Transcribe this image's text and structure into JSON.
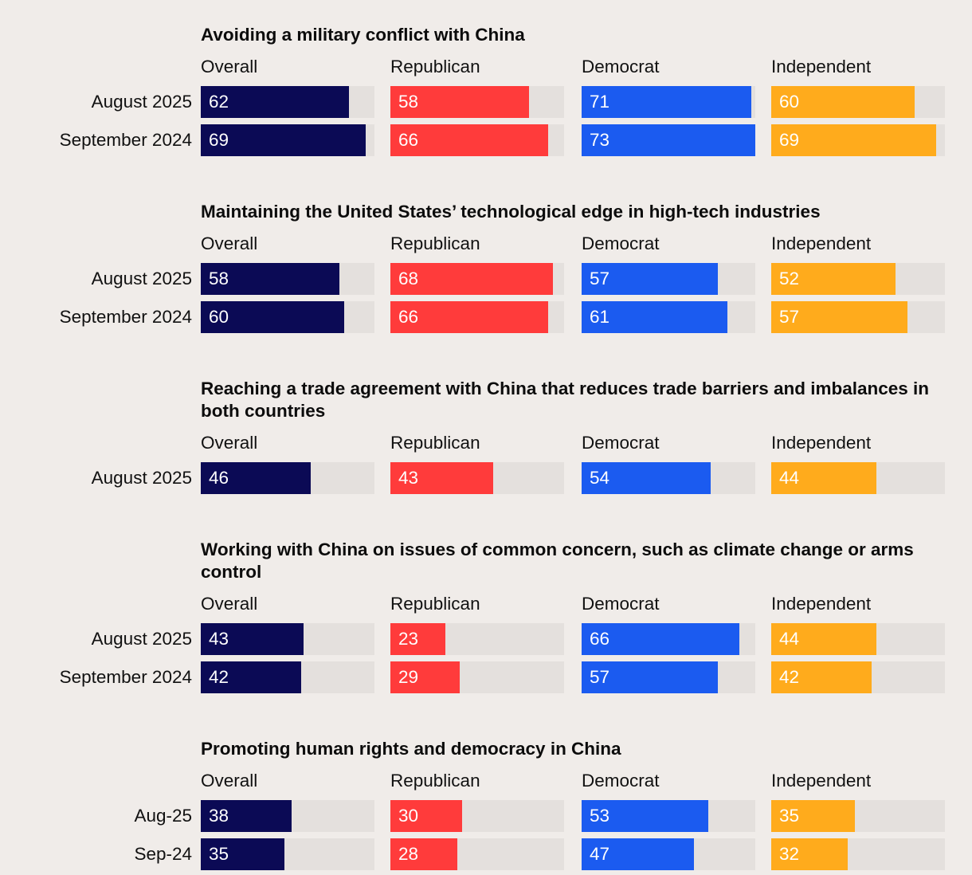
{
  "chart_data": {
    "type": "bar",
    "orientation": "horizontal",
    "panels": [
      "Overall",
      "Republican",
      "Democrat",
      "Independent"
    ],
    "xlim": [
      0,
      100
    ],
    "colors": {
      "Overall": "#0b0a55",
      "Republican": "#ff3b3b",
      "Democrat": "#1b5bf0",
      "Independent": "#ffab1c"
    },
    "groups": [
      {
        "title": "Avoiding a military conflict with China",
        "rows": [
          {
            "label": "August 2025",
            "values": [
              62,
              58,
              71,
              60
            ]
          },
          {
            "label": "September 2024",
            "values": [
              69,
              66,
              73,
              69
            ]
          }
        ]
      },
      {
        "title": "Maintaining the United States’ technological edge in high-tech industries",
        "rows": [
          {
            "label": "August 2025",
            "values": [
              58,
              68,
              57,
              52
            ]
          },
          {
            "label": "September 2024",
            "values": [
              60,
              66,
              61,
              57
            ]
          }
        ]
      },
      {
        "title": "Reaching a trade agreement with China that reduces trade barriers and imbalances in both countries",
        "rows": [
          {
            "label": "August 2025",
            "values": [
              46,
              43,
              54,
              44
            ]
          }
        ]
      },
      {
        "title": "Working with China on issues of common concern, such as climate change or arms control",
        "rows": [
          {
            "label": "August 2025",
            "values": [
              43,
              23,
              66,
              44
            ]
          },
          {
            "label": "September 2024",
            "values": [
              42,
              29,
              57,
              42
            ]
          }
        ]
      },
      {
        "title": "Promoting human rights and democracy in China",
        "rows": [
          {
            "label": "Aug-25",
            "values": [
              38,
              30,
              53,
              35
            ]
          },
          {
            "label": "Sep-24",
            "values": [
              35,
              28,
              47,
              32
            ]
          }
        ]
      }
    ]
  }
}
